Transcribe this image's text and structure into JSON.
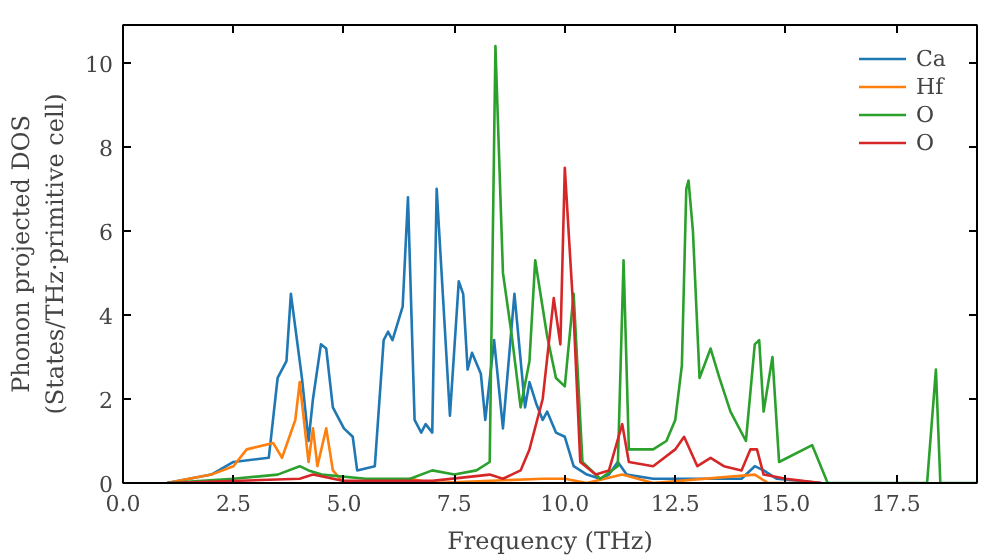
{
  "chart_data": {
    "type": "line",
    "xlabel": "Frequency (THz)",
    "ylabel": "Phonon projected DOS\n(States/THz·primitive cell)",
    "xlim": [
      0,
      19.33
    ],
    "ylim": [
      0,
      10.9
    ],
    "xticks": [
      {
        "value": 0,
        "label": "0.0"
      },
      {
        "value": 2.5,
        "label": "2.5"
      },
      {
        "value": 5,
        "label": "5.0"
      },
      {
        "value": 7.5,
        "label": "7.5"
      },
      {
        "value": 10,
        "label": "10.0"
      },
      {
        "value": 12.5,
        "label": "12.5"
      },
      {
        "value": 15,
        "label": "15.0"
      },
      {
        "value": 17.5,
        "label": "17.5"
      }
    ],
    "yticks": [
      0,
      2,
      4,
      6,
      8,
      10
    ],
    "grid": false,
    "legend": "top right",
    "series": [
      {
        "name": "Ca",
        "color": "#1f77b4",
        "x": [
          1.0,
          2.0,
          2.5,
          3.3,
          3.5,
          3.7,
          3.8,
          4.05,
          4.2,
          4.3,
          4.48,
          4.6,
          4.75,
          5.0,
          5.2,
          5.3,
          5.7,
          5.9,
          6.0,
          6.1,
          6.33,
          6.45,
          6.6,
          6.75,
          6.85,
          7.0,
          7.1,
          7.4,
          7.6,
          7.7,
          7.8,
          7.9,
          8.1,
          8.2,
          8.4,
          8.6,
          8.86,
          9.1,
          9.2,
          9.35,
          9.5,
          9.6,
          9.8,
          10.0,
          10.2,
          10.5,
          10.8,
          11.0,
          11.2,
          11.4,
          12.0,
          13.0,
          14.0,
          14.3,
          14.5,
          14.8,
          15.8
        ],
        "values": [
          0.0,
          0.2,
          0.5,
          0.6,
          2.5,
          2.9,
          4.5,
          2.5,
          1.0,
          2.0,
          3.3,
          3.2,
          1.8,
          1.3,
          1.1,
          0.3,
          0.4,
          3.4,
          3.6,
          3.4,
          4.2,
          6.8,
          1.5,
          1.2,
          1.4,
          1.2,
          7.0,
          1.6,
          4.8,
          4.5,
          2.7,
          3.1,
          2.6,
          1.5,
          3.4,
          1.3,
          4.5,
          1.8,
          2.4,
          1.9,
          1.5,
          1.7,
          1.2,
          1.1,
          0.4,
          0.2,
          0.1,
          0.2,
          0.5,
          0.2,
          0.1,
          0.1,
          0.1,
          0.4,
          0.3,
          0.1,
          0.0
        ]
      },
      {
        "name": "Hf",
        "color": "#ff7f0e",
        "x": [
          1.0,
          2.0,
          2.5,
          2.8,
          3.4,
          3.6,
          3.9,
          4.0,
          4.2,
          4.3,
          4.4,
          4.6,
          4.75,
          5.0,
          6.0,
          6.5,
          7.0,
          9.5,
          10.0,
          10.5,
          11.3,
          12.0,
          14.3,
          14.6,
          15.8
        ],
        "values": [
          0.0,
          0.2,
          0.4,
          0.8,
          0.95,
          0.6,
          1.5,
          2.4,
          0.5,
          1.3,
          0.4,
          1.3,
          0.3,
          0.0,
          0.0,
          0.1,
          0.0,
          0.1,
          0.1,
          0.0,
          0.2,
          0.0,
          0.2,
          0.0,
          0.0
        ]
      },
      {
        "name": "O",
        "color": "#2ca02c",
        "x": [
          1.0,
          2.5,
          3.5,
          4.0,
          4.2,
          4.5,
          5.5,
          6.5,
          7.0,
          7.5,
          8.0,
          8.3,
          8.43,
          8.6,
          8.8,
          9.0,
          9.2,
          9.33,
          9.6,
          9.8,
          10.0,
          10.2,
          10.4,
          10.8,
          11.2,
          11.33,
          11.45,
          12.0,
          12.3,
          12.5,
          12.65,
          12.75,
          12.8,
          12.9,
          13.05,
          13.3,
          13.5,
          13.75,
          14.1,
          14.3,
          14.4,
          14.5,
          14.7,
          14.85,
          15.6,
          15.95,
          18.2,
          18.4,
          18.5,
          19.33
        ],
        "values": [
          0.0,
          0.1,
          0.2,
          0.4,
          0.3,
          0.2,
          0.1,
          0.1,
          0.3,
          0.2,
          0.3,
          0.5,
          10.4,
          5.0,
          3.5,
          1.8,
          2.9,
          5.3,
          3.5,
          2.5,
          2.3,
          4.5,
          0.5,
          0.1,
          0.4,
          5.3,
          0.8,
          0.8,
          1.0,
          1.5,
          2.8,
          7.0,
          7.2,
          6.0,
          2.5,
          3.2,
          2.5,
          1.7,
          1.0,
          3.3,
          3.4,
          1.7,
          3.0,
          0.5,
          0.9,
          0.0,
          0.0,
          2.7,
          0.0,
          0.0
        ]
      },
      {
        "name": "O",
        "color": "#d62728",
        "x": [
          1.0,
          4.0,
          4.3,
          5.0,
          7.0,
          8.3,
          8.6,
          9.0,
          9.2,
          9.5,
          9.75,
          9.9,
          10.0,
          10.2,
          10.35,
          10.7,
          11.0,
          11.3,
          11.45,
          12.0,
          12.5,
          12.7,
          13.0,
          13.3,
          13.6,
          14.0,
          14.2,
          14.35,
          14.5,
          15.0,
          15.8
        ],
        "values": [
          0.0,
          0.1,
          0.2,
          0.05,
          0.05,
          0.2,
          0.1,
          0.3,
          0.8,
          2.0,
          4.4,
          3.3,
          7.5,
          4.0,
          0.5,
          0.2,
          0.3,
          1.4,
          0.5,
          0.4,
          0.8,
          1.1,
          0.4,
          0.6,
          0.4,
          0.3,
          0.8,
          0.8,
          0.2,
          0.1,
          0.0
        ]
      }
    ]
  }
}
